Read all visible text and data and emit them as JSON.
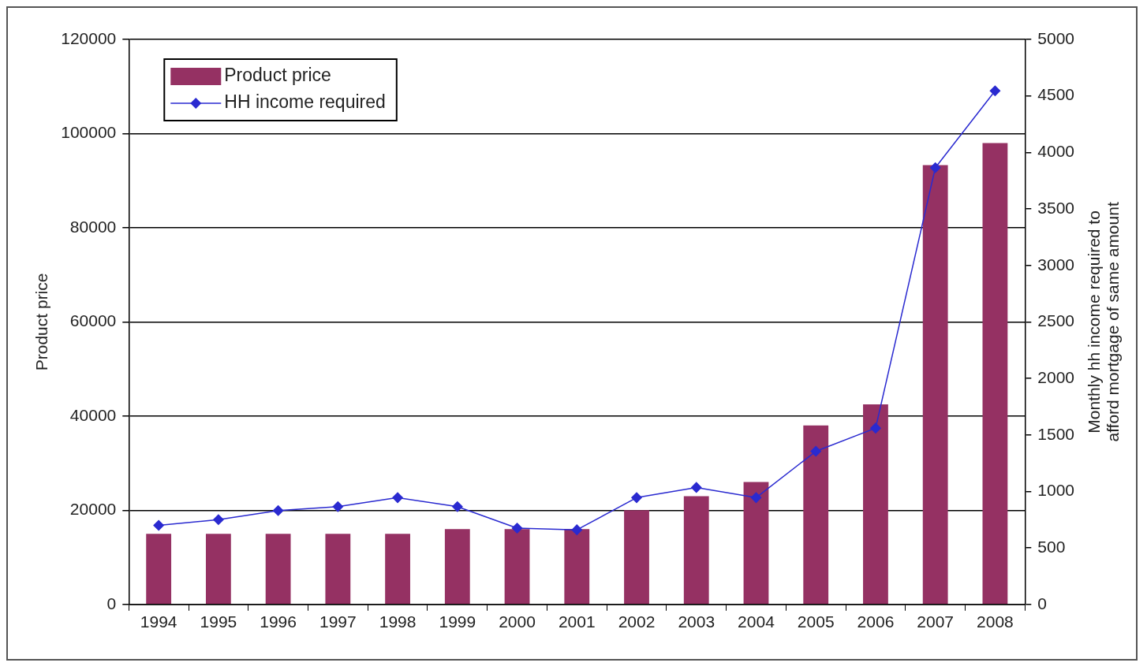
{
  "chart_data": {
    "type": "bar",
    "xlabel": null,
    "ylabel": "Product price",
    "y2label": "Monthly hh income required to afford mortgage of same amount",
    "categories": [
      "1994",
      "1995",
      "1996",
      "1997",
      "1998",
      "1999",
      "2000",
      "2001",
      "2002",
      "2003",
      "2004",
      "2005",
      "2006",
      "2007",
      "2008"
    ],
    "series": [
      {
        "name": "Product price",
        "color": "#953163",
        "values": [
          15000,
          15000,
          15000,
          15000,
          15000,
          16000,
          16000,
          16000,
          20000,
          23000,
          26000,
          38000,
          42500,
          93300,
          98000
        ]
      },
      {
        "name": "HH income required",
        "type": "line",
        "axis": "y2",
        "color": "#2a2ad0",
        "marker": "diamond",
        "values": [
          700,
          750,
          830,
          865,
          945,
          865,
          675,
          660,
          945,
          1035,
          945,
          1355,
          1560,
          3865,
          4545
        ]
      }
    ],
    "ylim": [
      0,
      120000
    ],
    "yticks": [
      0,
      20000,
      40000,
      60000,
      80000,
      100000,
      120000
    ],
    "y2lim": [
      0,
      5000
    ],
    "y2ticks": [
      0,
      500,
      1000,
      1500,
      2000,
      2500,
      3000,
      3500,
      4000,
      4500,
      5000
    ],
    "grid": "y",
    "legend": "top left"
  }
}
